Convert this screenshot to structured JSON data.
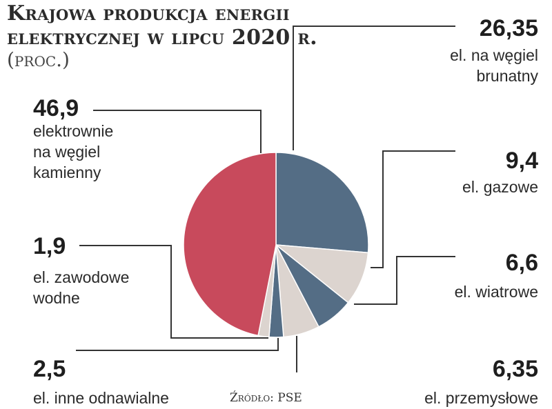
{
  "chart_data": {
    "type": "pie",
    "title_lines": [
      "Krajowa produkcja energii",
      "elektrycznej w lipcu 2020 r."
    ],
    "subtitle": "(proc.)",
    "source": "Źródło: PSE",
    "colors": {
      "blue": "#546d85",
      "beige": "#dcd4cf",
      "red": "#c84a5c"
    },
    "slices": [
      {
        "label_lines": [
          "el. na węgiel",
          "brunatny"
        ],
        "value": 26.35,
        "value_text": "26,35",
        "color": "#546d85"
      },
      {
        "label_lines": [
          "el. gazowe"
        ],
        "value": 9.4,
        "value_text": "9,4",
        "color": "#dcd4cf"
      },
      {
        "label_lines": [
          "el. wiatrowe"
        ],
        "value": 6.6,
        "value_text": "6,6",
        "color": "#546d85"
      },
      {
        "label_lines": [
          "el. przemysłowe"
        ],
        "value": 6.35,
        "value_text": "6,35",
        "color": "#dcd4cf"
      },
      {
        "label_lines": [
          "el. inne odnawialne"
        ],
        "value": 2.5,
        "value_text": "2,5",
        "color": "#546d85"
      },
      {
        "label_lines": [
          "el. zawodowe",
          "wodne"
        ],
        "value": 1.9,
        "value_text": "1,9",
        "color": "#dcd4cf"
      },
      {
        "label_lines": [
          "elektrownie",
          "na węgiel",
          "kamienny"
        ],
        "value": 46.9,
        "value_text": "46,9",
        "color": "#c84a5c"
      }
    ]
  }
}
